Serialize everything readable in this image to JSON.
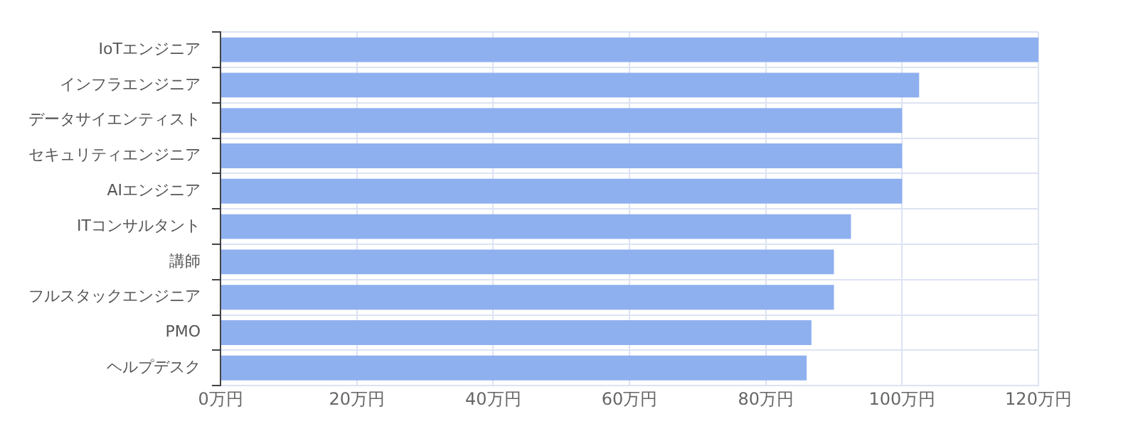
{
  "chart_data": {
    "type": "bar",
    "orientation": "horizontal",
    "categories": [
      "IoTエンジニア",
      "インフラエンジニア",
      "データサイエンティスト",
      "セキュリティエンジニア",
      "AIエンジニア",
      "ITコンサルタント",
      "講師",
      "フルスタックエンジニア",
      "PMO",
      "ヘルプデスク"
    ],
    "values": [
      120,
      102.5,
      100,
      100,
      100,
      92.5,
      90,
      90,
      86.7,
      86
    ],
    "color": "#8fb0ef",
    "xlim": [
      0,
      120
    ],
    "xticks": [
      {
        "value": 0,
        "label": "0万円"
      },
      {
        "value": 20,
        "label": "20万円"
      },
      {
        "value": 40,
        "label": "40万円"
      },
      {
        "value": 60,
        "label": "60万円"
      },
      {
        "value": 80,
        "label": "80万円"
      },
      {
        "value": 100,
        "label": "100万円"
      },
      {
        "value": 120,
        "label": "120万円"
      }
    ],
    "grid": true,
    "legend": false
  }
}
